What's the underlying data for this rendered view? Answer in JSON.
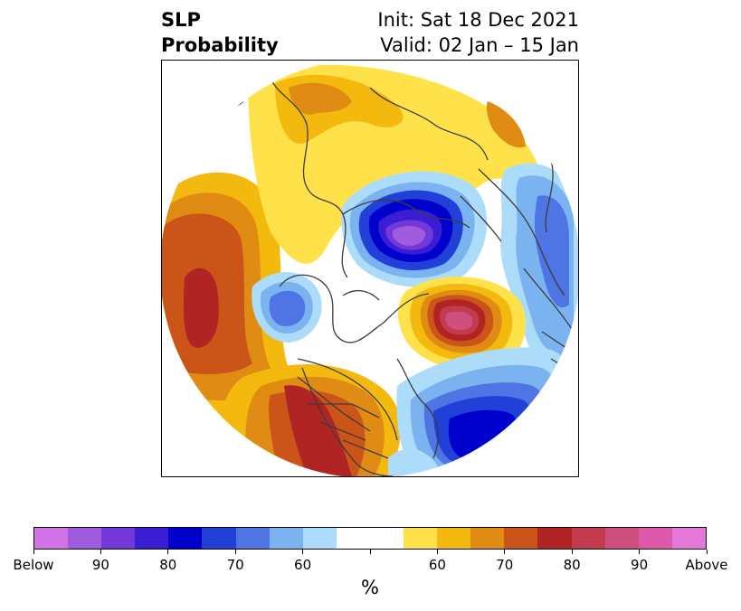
{
  "title": {
    "line1_left": "SLP",
    "line2_left": "Probability",
    "line1_right": "Init: Sat 18 Dec 2021",
    "line2_right": "Valid: 02 Jan – 15 Jan"
  },
  "map": {
    "projection": "north-polar-stereographic",
    "coastline_color": "#3c3c3c",
    "anomaly_regions": [
      {
        "name": "arctic-low",
        "category": "below",
        "peak_percent": 90
      },
      {
        "name": "north-atlantic-low",
        "category": "below",
        "peak_percent": 80
      },
      {
        "name": "greenland-high",
        "category": "above",
        "peak_percent": 90
      },
      {
        "name": "north-pacific-high",
        "category": "above",
        "peak_percent": 75
      },
      {
        "name": "western-us-high",
        "category": "above",
        "peak_percent": 75
      },
      {
        "name": "europe-high",
        "category": "above",
        "peak_percent": 65
      },
      {
        "name": "alaska-low",
        "category": "below",
        "peak_percent": 65
      }
    ]
  },
  "colorbar": {
    "colors": [
      "#d473e8",
      "#a15bdf",
      "#7338d9",
      "#3b1ed4",
      "#0000cc",
      "#2040d8",
      "#4f74e4",
      "#7bb3f0",
      "#acdcfa",
      "#ffffff",
      "#ffffff",
      "#ffe24a",
      "#f4b90f",
      "#e08c14",
      "#cb5519",
      "#b12424",
      "#c43b50",
      "#cf4f7f",
      "#dd5aaa",
      "#e479d9"
    ],
    "tick_labels": [
      "Below",
      "90",
      "80",
      "70",
      "60",
      "",
      "60",
      "70",
      "80",
      "90",
      "Above"
    ],
    "unit": "%"
  }
}
